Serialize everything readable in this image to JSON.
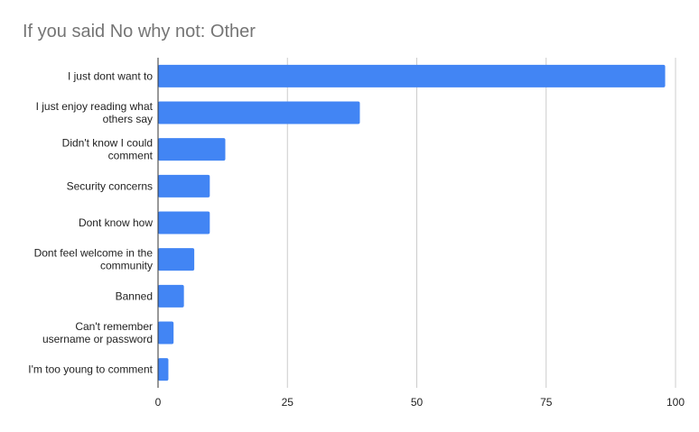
{
  "chart_data": {
    "type": "bar",
    "orientation": "horizontal",
    "title": "If you said No why not: Other",
    "categories": [
      "I just dont want to",
      "I just enjoy reading what others say",
      "Didn't know I could comment",
      "Security concerns",
      "Dont know how",
      "Dont feel welcome in the community",
      "Banned",
      "Can't remember username or password",
      "I'm too young to comment"
    ],
    "category_lines": [
      [
        "I just dont want to"
      ],
      [
        "I just enjoy reading what",
        "others say"
      ],
      [
        "Didn't know I could",
        "comment"
      ],
      [
        "Security concerns"
      ],
      [
        "Dont know how"
      ],
      [
        "Dont feel welcome in the",
        "community"
      ],
      [
        "Banned"
      ],
      [
        "Can't remember",
        "username or password"
      ],
      [
        "I'm too young to comment"
      ]
    ],
    "values": [
      98,
      39,
      13,
      10,
      10,
      7,
      5,
      3,
      2
    ],
    "xlim": [
      0,
      100
    ],
    "xticks": [
      "0",
      "25",
      "50",
      "75",
      "100"
    ],
    "xlabel": "",
    "ylabel": "",
    "grid": true,
    "legend": "none",
    "bar_color": "#4285f4",
    "grid_color": "#cccccc",
    "axis_color": "#333333"
  }
}
